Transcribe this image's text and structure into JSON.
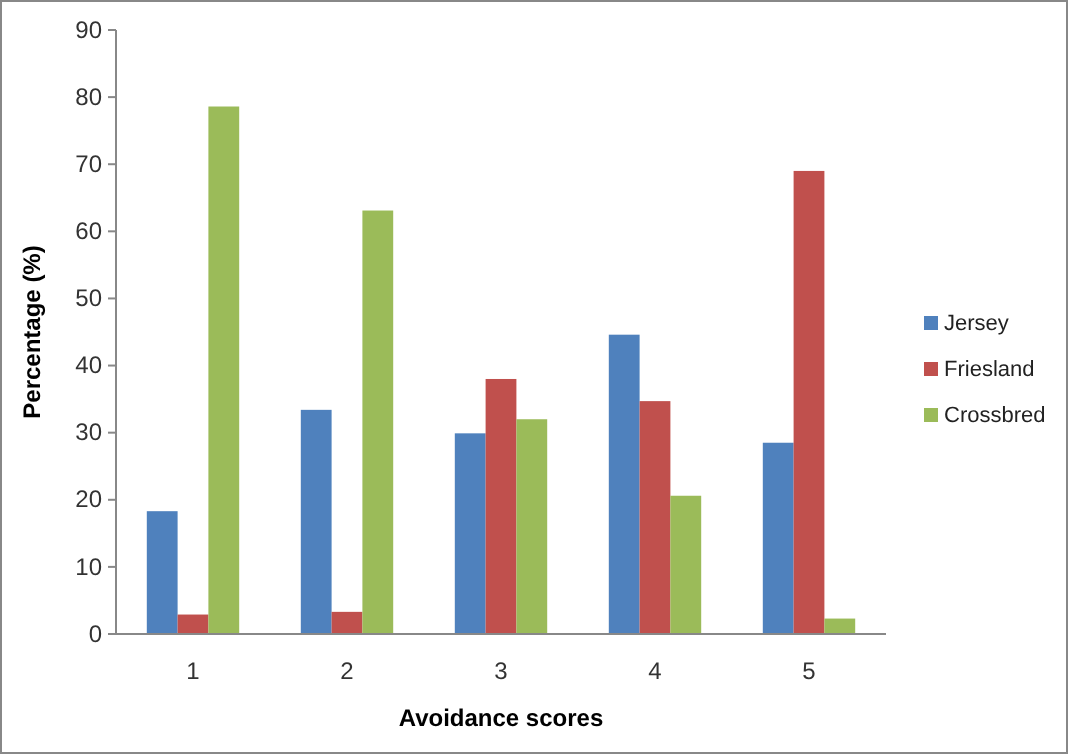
{
  "chart_data": {
    "type": "bar",
    "xlabel": "Avoidance scores",
    "ylabel": "Percentage (%)",
    "categories": [
      "1",
      "2",
      "3",
      "4",
      "5"
    ],
    "series": [
      {
        "name": "Jersey",
        "color": "#4f81bd",
        "values": [
          18.3,
          33.4,
          29.9,
          44.6,
          28.5
        ]
      },
      {
        "name": "Friesland",
        "color": "#c0504d",
        "values": [
          2.9,
          3.3,
          38,
          34.7,
          69
        ]
      },
      {
        "name": "Crossbred",
        "color": "#9bbb59",
        "values": [
          78.6,
          63.1,
          32,
          20.6,
          2.3
        ]
      }
    ],
    "ylim": [
      0,
      90
    ],
    "yticks": [
      0,
      10,
      20,
      30,
      40,
      50,
      60,
      70,
      80,
      90
    ],
    "grid": false,
    "legend": "right"
  }
}
